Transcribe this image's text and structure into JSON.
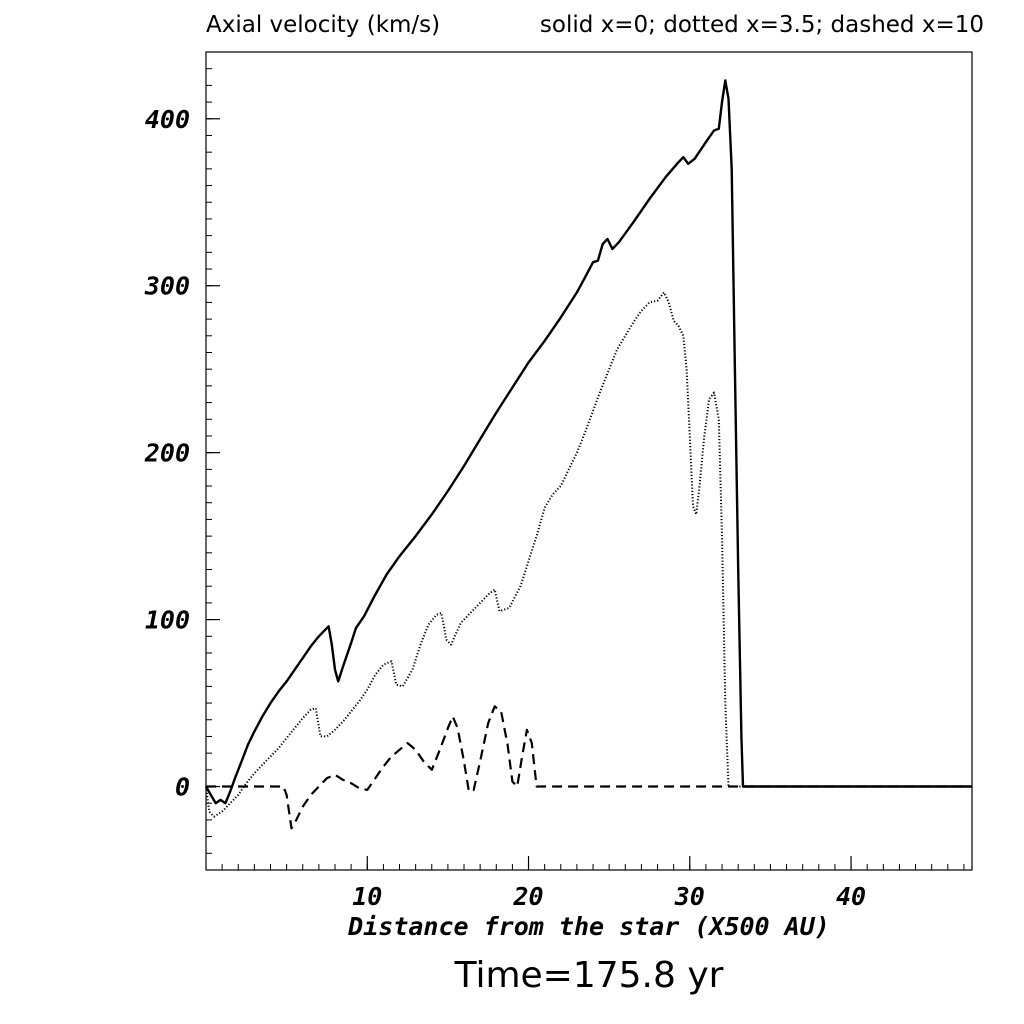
{
  "header": {
    "title": "Axial velocity (km/s)",
    "legend_note": "solid x=0; dotted x=3.5; dashed x=10"
  },
  "footer": {
    "time_label": "Time=175.8 yr"
  },
  "chart_data": {
    "type": "line",
    "title": "Axial velocity (km/s)",
    "xlabel": "Distance from the star (X500 AU)",
    "ylabel": "",
    "xlim": [
      0,
      47.5
    ],
    "ylim": [
      -50,
      440
    ],
    "x_ticks": [
      10,
      20,
      30,
      40
    ],
    "y_ticks": [
      0,
      100,
      200,
      300,
      400
    ],
    "x_minor_step": 1,
    "y_minor_step": 10,
    "grid": false,
    "legend": "text in header",
    "series": [
      {
        "name": "solid x=0",
        "style": "solid",
        "points": [
          [
            0,
            0
          ],
          [
            0.3,
            -5
          ],
          [
            0.6,
            -10
          ],
          [
            0.9,
            -8
          ],
          [
            1.2,
            -10
          ],
          [
            1.5,
            -3
          ],
          [
            1.8,
            5
          ],
          [
            2.2,
            15
          ],
          [
            2.6,
            25
          ],
          [
            3,
            33
          ],
          [
            3.5,
            42
          ],
          [
            4,
            50
          ],
          [
            4.5,
            57
          ],
          [
            5,
            63
          ],
          [
            5.5,
            70
          ],
          [
            6,
            77
          ],
          [
            6.5,
            84
          ],
          [
            7,
            90
          ],
          [
            7.3,
            93
          ],
          [
            7.6,
            96
          ],
          [
            7.8,
            85
          ],
          [
            8,
            70
          ],
          [
            8.2,
            63
          ],
          [
            8.5,
            72
          ],
          [
            9,
            86
          ],
          [
            9.3,
            95
          ],
          [
            9.8,
            102
          ],
          [
            10.5,
            115
          ],
          [
            11.2,
            127
          ],
          [
            12,
            138
          ],
          [
            13,
            150
          ],
          [
            14,
            163
          ],
          [
            15,
            177
          ],
          [
            16,
            192
          ],
          [
            17,
            208
          ],
          [
            18,
            224
          ],
          [
            19,
            239
          ],
          [
            20,
            254
          ],
          [
            21,
            267
          ],
          [
            22,
            281
          ],
          [
            23,
            296
          ],
          [
            23.5,
            305
          ],
          [
            24,
            314
          ],
          [
            24.3,
            315
          ],
          [
            24.6,
            325
          ],
          [
            24.9,
            328
          ],
          [
            25.2,
            322
          ],
          [
            25.6,
            326
          ],
          [
            26.5,
            338
          ],
          [
            27.5,
            352
          ],
          [
            28.5,
            365
          ],
          [
            29.3,
            374
          ],
          [
            29.6,
            377
          ],
          [
            29.9,
            373
          ],
          [
            30.3,
            376
          ],
          [
            31,
            386
          ],
          [
            31.5,
            393
          ],
          [
            31.8,
            394
          ],
          [
            32,
            410
          ],
          [
            32.2,
            423
          ],
          [
            32.4,
            412
          ],
          [
            32.6,
            370
          ],
          [
            32.8,
            250
          ],
          [
            33,
            130
          ],
          [
            33.2,
            30
          ],
          [
            33.3,
            0
          ],
          [
            47.5,
            0
          ]
        ]
      },
      {
        "name": "dotted x=3.5",
        "style": "dotted",
        "points": [
          [
            0,
            0
          ],
          [
            0.2,
            -15
          ],
          [
            0.5,
            -18
          ],
          [
            1,
            -15
          ],
          [
            1.5,
            -10
          ],
          [
            2,
            -5
          ],
          [
            2.5,
            2
          ],
          [
            3,
            8
          ],
          [
            3.5,
            13
          ],
          [
            4,
            18
          ],
          [
            4.5,
            23
          ],
          [
            5,
            29
          ],
          [
            5.5,
            35
          ],
          [
            6,
            41
          ],
          [
            6.5,
            46
          ],
          [
            6.8,
            47
          ],
          [
            7.1,
            30
          ],
          [
            7.5,
            30
          ],
          [
            8,
            34
          ],
          [
            8.5,
            39
          ],
          [
            9,
            45
          ],
          [
            9.5,
            51
          ],
          [
            10,
            58
          ],
          [
            10.5,
            67
          ],
          [
            11,
            73
          ],
          [
            11.5,
            75
          ],
          [
            11.8,
            61
          ],
          [
            12.2,
            60
          ],
          [
            12.8,
            70
          ],
          [
            13.3,
            85
          ],
          [
            13.8,
            97
          ],
          [
            14.3,
            103
          ],
          [
            14.6,
            104
          ],
          [
            14.9,
            88
          ],
          [
            15.2,
            85
          ],
          [
            15.8,
            98
          ],
          [
            16.5,
            105
          ],
          [
            17,
            110
          ],
          [
            17.5,
            115
          ],
          [
            17.9,
            118
          ],
          [
            18.2,
            105
          ],
          [
            18.8,
            107
          ],
          [
            19.5,
            120
          ],
          [
            20,
            135
          ],
          [
            20.5,
            150
          ],
          [
            21,
            167
          ],
          [
            21.5,
            175
          ],
          [
            22,
            180
          ],
          [
            22.5,
            190
          ],
          [
            23,
            200
          ],
          [
            23.5,
            212
          ],
          [
            24,
            225
          ],
          [
            24.5,
            238
          ],
          [
            25,
            250
          ],
          [
            25.5,
            262
          ],
          [
            26,
            270
          ],
          [
            26.5,
            278
          ],
          [
            27,
            285
          ],
          [
            27.5,
            290
          ],
          [
            28,
            291
          ],
          [
            28.4,
            296
          ],
          [
            28.7,
            290
          ],
          [
            29,
            279
          ],
          [
            29.3,
            276
          ],
          [
            29.6,
            270
          ],
          [
            29.8,
            250
          ],
          [
            30,
            210
          ],
          [
            30.2,
            168
          ],
          [
            30.4,
            163
          ],
          [
            30.6,
            180
          ],
          [
            30.9,
            210
          ],
          [
            31.2,
            232
          ],
          [
            31.5,
            236
          ],
          [
            31.8,
            220
          ],
          [
            32,
            150
          ],
          [
            32.2,
            50
          ],
          [
            32.4,
            0
          ],
          [
            47.5,
            0
          ]
        ]
      },
      {
        "name": "dashed x=10",
        "style": "dashed",
        "points": [
          [
            0,
            0
          ],
          [
            4.8,
            0
          ],
          [
            5,
            -5
          ],
          [
            5.3,
            -25
          ],
          [
            5.6,
            -20
          ],
          [
            6,
            -12
          ],
          [
            6.5,
            -5
          ],
          [
            7,
            0
          ],
          [
            7.5,
            5
          ],
          [
            8,
            7
          ],
          [
            8.5,
            4
          ],
          [
            9,
            2
          ],
          [
            9.5,
            -1
          ],
          [
            10,
            -2
          ],
          [
            10.5,
            5
          ],
          [
            11,
            12
          ],
          [
            11.5,
            18
          ],
          [
            12,
            22
          ],
          [
            12.5,
            26
          ],
          [
            13,
            22
          ],
          [
            13.5,
            15
          ],
          [
            14,
            10
          ],
          [
            14.5,
            22
          ],
          [
            15,
            35
          ],
          [
            15.3,
            42
          ],
          [
            15.6,
            35
          ],
          [
            16,
            15
          ],
          [
            16.3,
            -3
          ],
          [
            16.6,
            -2
          ],
          [
            17,
            15
          ],
          [
            17.5,
            38
          ],
          [
            17.9,
            48
          ],
          [
            18.3,
            45
          ],
          [
            18.7,
            25
          ],
          [
            19,
            3
          ],
          [
            19.3,
            0
          ],
          [
            19.6,
            18
          ],
          [
            19.9,
            34
          ],
          [
            20.2,
            26
          ],
          [
            20.5,
            0
          ],
          [
            47.5,
            0
          ]
        ]
      }
    ]
  }
}
